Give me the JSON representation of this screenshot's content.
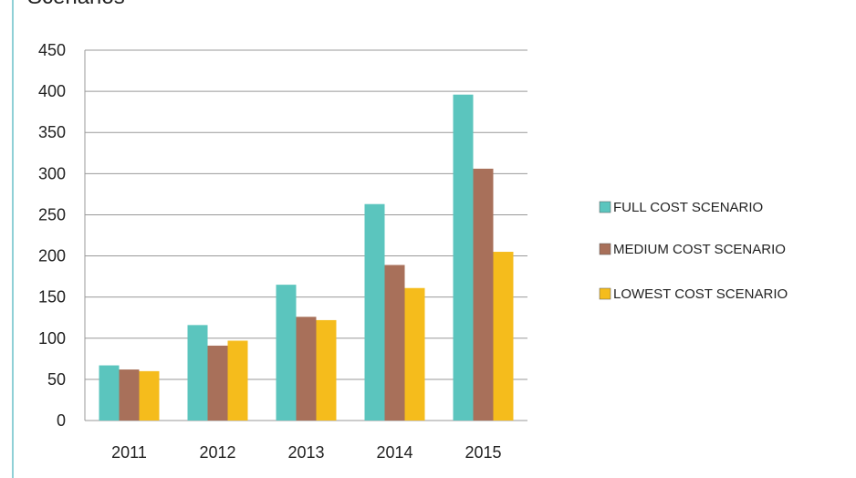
{
  "chart_data": {
    "type": "bar",
    "title": "Scenarios",
    "categories": [
      "2011",
      "2012",
      "2013",
      "2014",
      "2015"
    ],
    "series": [
      {
        "name": "FULL COST SCENARIO",
        "color": "#5bc5be",
        "values": [
          67,
          116,
          165,
          263,
          396
        ]
      },
      {
        "name": "MEDIUM COST SCENARIO",
        "color": "#a8705a",
        "values": [
          62,
          91,
          126,
          189,
          306
        ]
      },
      {
        "name": "LOWEST COST SCENARIO",
        "color": "#f5bc1c",
        "values": [
          60,
          97,
          122,
          161,
          205
        ]
      }
    ],
    "ylim": [
      0,
      450
    ],
    "yticks": [
      0,
      50,
      100,
      150,
      200,
      250,
      300,
      350,
      400,
      450
    ],
    "grid": true,
    "legend": "right"
  }
}
